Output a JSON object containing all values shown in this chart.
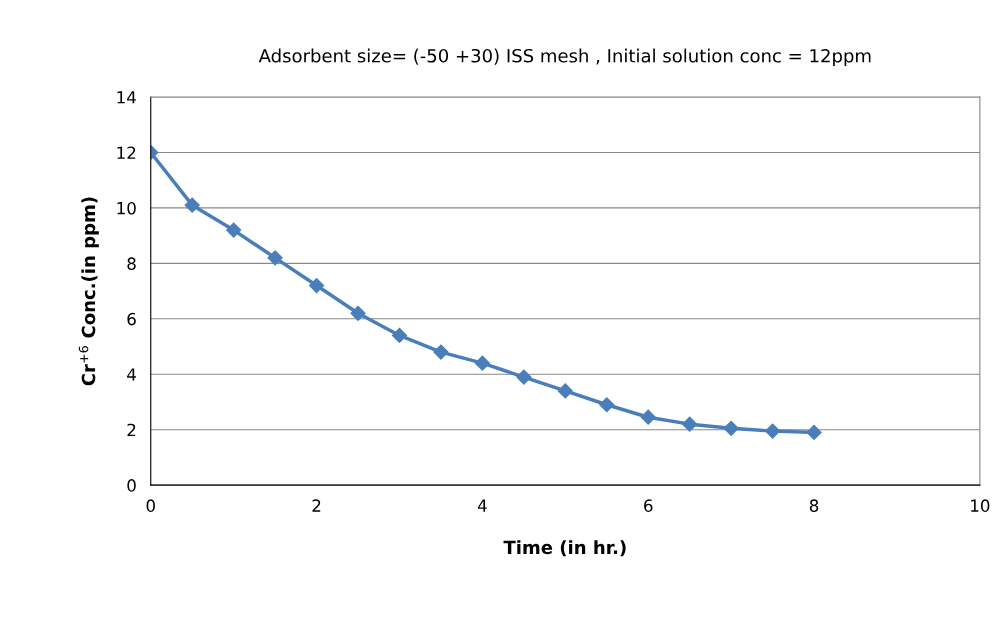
{
  "chart_data": {
    "type": "line",
    "title": "Adsorbent size= (-50 +30) ISS mesh , Initial solution conc = 12ppm",
    "xlabel": "Time (in hr.)",
    "ylabel": "Cr$^{+6}$ Conc.(in ppm)",
    "x": [
      0,
      0.5,
      1,
      1.5,
      2,
      2.5,
      3,
      3.5,
      4,
      4.5,
      5,
      5.5,
      6,
      6.5,
      7,
      7.5,
      8
    ],
    "series": [
      {
        "color": "#4a7ebb",
        "values": [
          12.0,
          10.1,
          9.2,
          8.2,
          7.2,
          6.2,
          5.4,
          4.8,
          4.4,
          3.9,
          3.4,
          2.9,
          2.45,
          2.2,
          2.05,
          1.95,
          1.9
        ]
      }
    ],
    "xlim": [
      0,
      10
    ],
    "xticks": [
      0,
      2,
      4,
      6,
      8,
      10
    ],
    "ylim": [
      0,
      14
    ],
    "yticks": [
      0,
      2,
      4,
      6,
      8,
      10,
      12,
      14
    ],
    "grid": "y",
    "marker": "diamond",
    "line_style": "solid"
  }
}
